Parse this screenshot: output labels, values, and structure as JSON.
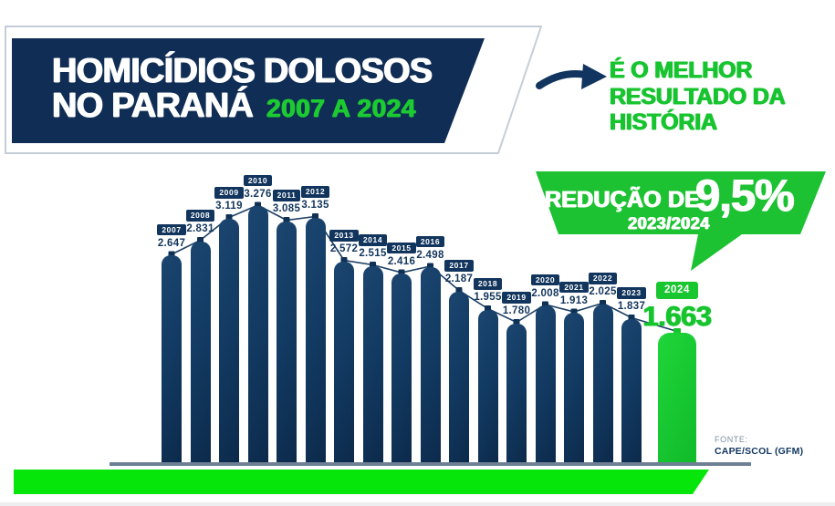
{
  "header": {
    "title_line1": "HOMICÍDIOS DOLOSOS",
    "title_line2": "NO PARANÁ",
    "title_range": "2007 A 2024"
  },
  "callout": {
    "arrow_icon": "arrow-right-icon",
    "lines": [
      "É O MELHOR",
      "RESULTADO DA",
      "HISTÓRIA"
    ]
  },
  "badge": {
    "prefix": "REDUÇÃO DE",
    "percent": "9,5%",
    "period": "2023/2024"
  },
  "source": {
    "label": "FONTE:",
    "value": "CAPE/SCOL (GFM)"
  },
  "colors": {
    "navy": "#102e55",
    "bar_gradient_light": "#1b4670",
    "bar_gradient_mid": "#123a62",
    "bar_gradient_dark": "#0c2a4b",
    "green": "#17c42f",
    "green_bar_light": "#1fd63a",
    "green_bar_dark": "#12bd2b",
    "neon_green_strip": "#06e60b",
    "axis_gray": "#6e8094",
    "echo_outline_gray": "#c5ced8",
    "line_navy": "#1d4066",
    "marker_navy": "#0f3156",
    "marker_green": "#15c52e"
  },
  "chart_data": {
    "type": "bar",
    "overlay": "line-markers",
    "title": "HOMICÍDIOS DOLOSOS NO PARANÁ 2007 A 2024",
    "xlabel": "",
    "ylabel": "",
    "ylim": [
      0,
      3500
    ],
    "grid": false,
    "legend": false,
    "categories": [
      "2007",
      "2008",
      "2009",
      "2010",
      "2011",
      "2012",
      "2013",
      "2014",
      "2015",
      "2016",
      "2017",
      "2018",
      "2019",
      "2020",
      "2021",
      "2022",
      "2023",
      "2024"
    ],
    "values": [
      2647,
      2831,
      3119,
      3276,
      3085,
      3135,
      2572,
      2515,
      2416,
      2498,
      2187,
      1955,
      1780,
      2008,
      1913,
      2025,
      1837,
      1663
    ],
    "labels": [
      "2.647",
      "2.831",
      "3.119",
      "3.276",
      "3.085",
      "3.135",
      "2.572",
      "2.515",
      "2.416",
      "2.498",
      "2.187",
      "1.955",
      "1.780",
      "2.008",
      "1.913",
      "2.025",
      "1.837",
      "1.663"
    ],
    "highlight_category": "2024",
    "highlight_index": 17,
    "annotation": "REDUÇÃO DE 9,5% 2023/2024",
    "callout": "É O MELHOR RESULTADO DA HISTÓRIA",
    "source": "FONTE: CAPE/SCOL (GFM)"
  }
}
